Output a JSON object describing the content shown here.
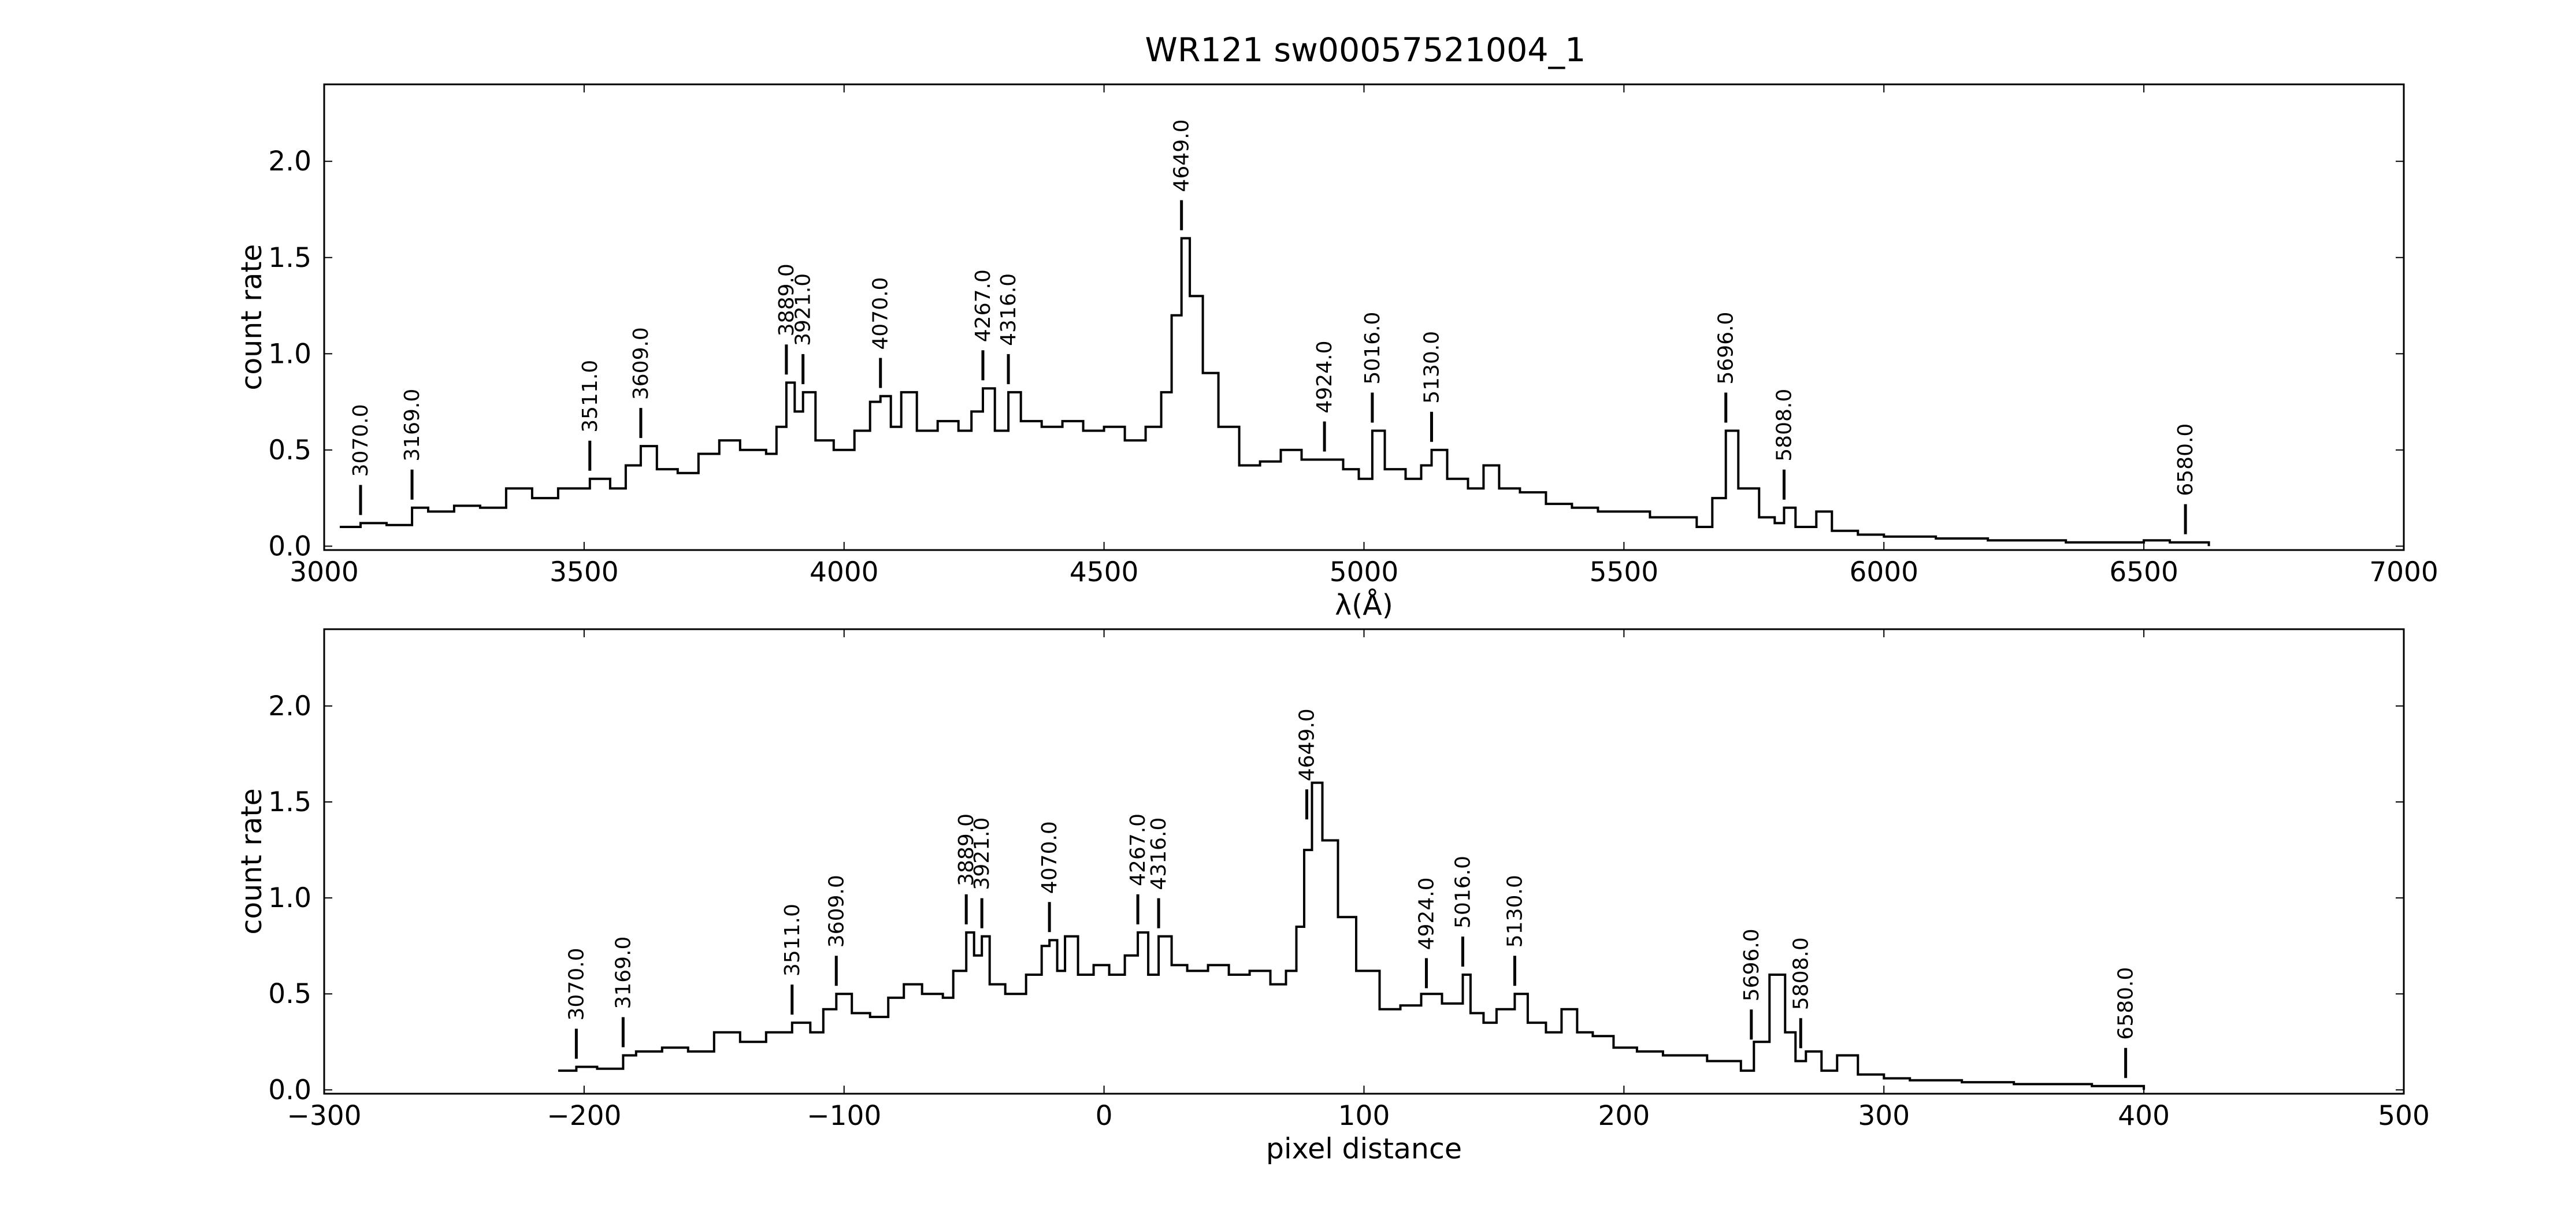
{
  "chart_data": [
    {
      "type": "line",
      "title": "WR121  sw00057521004_1",
      "xlabel": "λ(Å)",
      "ylabel": "count rate",
      "xlim": [
        3000,
        7000
      ],
      "ylim": [
        -0.02,
        2.4
      ],
      "xticks": [
        3000,
        3500,
        4000,
        4500,
        5000,
        5500,
        6000,
        6500,
        7000
      ],
      "xtick_labels": [
        "3000",
        "3500",
        "4000",
        "4500",
        "5000",
        "5500",
        "6000",
        "6500",
        "7000"
      ],
      "yticks": [
        0.0,
        0.5,
        1.0,
        1.5,
        2.0
      ],
      "ytick_labels": [
        "0.0",
        "0.5",
        "1.0",
        "1.5",
        "2.0"
      ],
      "grid": false,
      "series": [
        {
          "x": [
            3030,
            3070,
            3120,
            3169,
            3200,
            3250,
            3300,
            3350,
            3400,
            3450,
            3511,
            3550,
            3580,
            3609,
            3640,
            3680,
            3720,
            3760,
            3800,
            3850,
            3870,
            3889,
            3905,
            3921,
            3945,
            3980,
            4020,
            4050,
            4070,
            4090,
            4110,
            4140,
            4180,
            4220,
            4245,
            4267,
            4290,
            4316,
            4340,
            4380,
            4420,
            4460,
            4500,
            4540,
            4580,
            4610,
            4630,
            4649,
            4665,
            4690,
            4720,
            4760,
            4800,
            4840,
            4880,
            4924,
            4960,
            4990,
            5016,
            5040,
            5080,
            5110,
            5130,
            5160,
            5200,
            5230,
            5260,
            5300,
            5350,
            5400,
            5450,
            5500,
            5550,
            5600,
            5640,
            5670,
            5696,
            5720,
            5760,
            5790,
            5808,
            5830,
            5870,
            5900,
            5950,
            6000,
            6050,
            6100,
            6150,
            6200,
            6250,
            6300,
            6350,
            6400,
            6450,
            6500,
            6550,
            6580,
            6600,
            6625
          ],
          "y": [
            0.1,
            0.12,
            0.11,
            0.2,
            0.18,
            0.21,
            0.2,
            0.3,
            0.25,
            0.3,
            0.35,
            0.3,
            0.42,
            0.52,
            0.4,
            0.38,
            0.48,
            0.55,
            0.5,
            0.48,
            0.62,
            0.85,
            0.7,
            0.8,
            0.55,
            0.5,
            0.6,
            0.75,
            0.78,
            0.62,
            0.8,
            0.6,
            0.65,
            0.6,
            0.7,
            0.82,
            0.6,
            0.8,
            0.65,
            0.62,
            0.65,
            0.6,
            0.62,
            0.55,
            0.62,
            0.8,
            1.2,
            1.6,
            1.3,
            0.9,
            0.62,
            0.42,
            0.44,
            0.5,
            0.45,
            0.45,
            0.4,
            0.35,
            0.6,
            0.4,
            0.35,
            0.42,
            0.5,
            0.35,
            0.3,
            0.42,
            0.3,
            0.28,
            0.22,
            0.2,
            0.18,
            0.18,
            0.15,
            0.15,
            0.1,
            0.25,
            0.6,
            0.3,
            0.15,
            0.12,
            0.2,
            0.1,
            0.18,
            0.08,
            0.06,
            0.05,
            0.05,
            0.04,
            0.04,
            0.03,
            0.03,
            0.03,
            0.02,
            0.02,
            0.02,
            0.03,
            0.02,
            0.02,
            0.02,
            0.0
          ]
        }
      ],
      "annotations": [
        {
          "x": 3070,
          "label": "3070.0"
        },
        {
          "x": 3169,
          "label": "3169.0"
        },
        {
          "x": 3511,
          "label": "3511.0"
        },
        {
          "x": 3609,
          "label": "3609.0"
        },
        {
          "x": 3889,
          "label": "3889.0"
        },
        {
          "x": 3921,
          "label": "3921.0"
        },
        {
          "x": 4070,
          "label": "4070.0"
        },
        {
          "x": 4267,
          "label": "4267.0"
        },
        {
          "x": 4316,
          "label": "4316.0"
        },
        {
          "x": 4649,
          "label": "4649.0"
        },
        {
          "x": 4924,
          "label": "4924.0"
        },
        {
          "x": 5016,
          "label": "5016.0"
        },
        {
          "x": 5130,
          "label": "5130.0"
        },
        {
          "x": 5696,
          "label": "5696.0"
        },
        {
          "x": 5808,
          "label": "5808.0"
        },
        {
          "x": 6580,
          "label": "6580.0"
        }
      ]
    },
    {
      "type": "line",
      "title": "",
      "xlabel": "pixel distance",
      "ylabel": "count rate",
      "xlim": [
        -300,
        500
      ],
      "ylim": [
        -0.02,
        2.4
      ],
      "xticks": [
        -300,
        -200,
        -100,
        0,
        100,
        200,
        300,
        400,
        500
      ],
      "xtick_labels": [
        "−300",
        "−200",
        "−100",
        "0",
        "100",
        "200",
        "300",
        "400",
        "500"
      ],
      "yticks": [
        0.0,
        0.5,
        1.0,
        1.5,
        2.0
      ],
      "ytick_labels": [
        "0.0",
        "0.5",
        "1.0",
        "1.5",
        "2.0"
      ],
      "grid": false,
      "series": [
        {
          "x": [
            -210,
            -203,
            -195,
            -185,
            -180,
            -170,
            -160,
            -150,
            -140,
            -130,
            -120,
            -113,
            -108,
            -103,
            -97,
            -90,
            -83,
            -77,
            -70,
            -62,
            -58,
            -53,
            -50,
            -47,
            -44,
            -38,
            -30,
            -24,
            -21,
            -18,
            -15,
            -10,
            -4,
            2,
            8,
            13,
            17,
            21,
            26,
            32,
            40,
            48,
            56,
            64,
            70,
            74,
            77,
            80,
            84,
            90,
            97,
            106,
            114,
            122,
            130,
            135,
            138,
            141,
            146,
            151,
            158,
            163,
            170,
            176,
            182,
            188,
            196,
            205,
            215,
            225,
            232,
            240,
            245,
            250,
            256,
            262,
            266,
            270,
            276,
            282,
            290,
            300,
            310,
            320,
            330,
            340,
            350,
            360,
            370,
            380,
            390,
            396,
            400
          ],
          "y": [
            0.1,
            0.12,
            0.11,
            0.18,
            0.2,
            0.22,
            0.2,
            0.3,
            0.25,
            0.3,
            0.35,
            0.3,
            0.42,
            0.5,
            0.4,
            0.38,
            0.48,
            0.55,
            0.5,
            0.48,
            0.62,
            0.82,
            0.7,
            0.8,
            0.55,
            0.5,
            0.6,
            0.75,
            0.78,
            0.62,
            0.8,
            0.6,
            0.65,
            0.6,
            0.7,
            0.82,
            0.6,
            0.8,
            0.65,
            0.62,
            0.65,
            0.6,
            0.62,
            0.55,
            0.62,
            0.85,
            1.25,
            1.6,
            1.3,
            0.9,
            0.62,
            0.42,
            0.44,
            0.5,
            0.45,
            0.45,
            0.6,
            0.4,
            0.35,
            0.42,
            0.5,
            0.35,
            0.3,
            0.42,
            0.3,
            0.28,
            0.22,
            0.2,
            0.18,
            0.18,
            0.15,
            0.15,
            0.1,
            0.25,
            0.6,
            0.3,
            0.15,
            0.2,
            0.1,
            0.18,
            0.08,
            0.06,
            0.05,
            0.05,
            0.04,
            0.04,
            0.03,
            0.03,
            0.03,
            0.02,
            0.02,
            0.02,
            0.0
          ]
        }
      ],
      "annotations": [
        {
          "x": -203,
          "label": "3070.0"
        },
        {
          "x": -185,
          "label": "3169.0"
        },
        {
          "x": -120,
          "label": "3511.0"
        },
        {
          "x": -103,
          "label": "3609.0"
        },
        {
          "x": -53,
          "label": "3889.0"
        },
        {
          "x": -47,
          "label": "3921.0"
        },
        {
          "x": -21,
          "label": "4070.0"
        },
        {
          "x": 13,
          "label": "4267.0"
        },
        {
          "x": 21,
          "label": "4316.0"
        },
        {
          "x": 78,
          "label": "4649.0"
        },
        {
          "x": 124,
          "label": "4924.0"
        },
        {
          "x": 138,
          "label": "5016.0"
        },
        {
          "x": 158,
          "label": "5130.0"
        },
        {
          "x": 249,
          "label": "5696.0"
        },
        {
          "x": 268,
          "label": "5808.0"
        },
        {
          "x": 393,
          "label": "6580.0"
        }
      ]
    }
  ]
}
